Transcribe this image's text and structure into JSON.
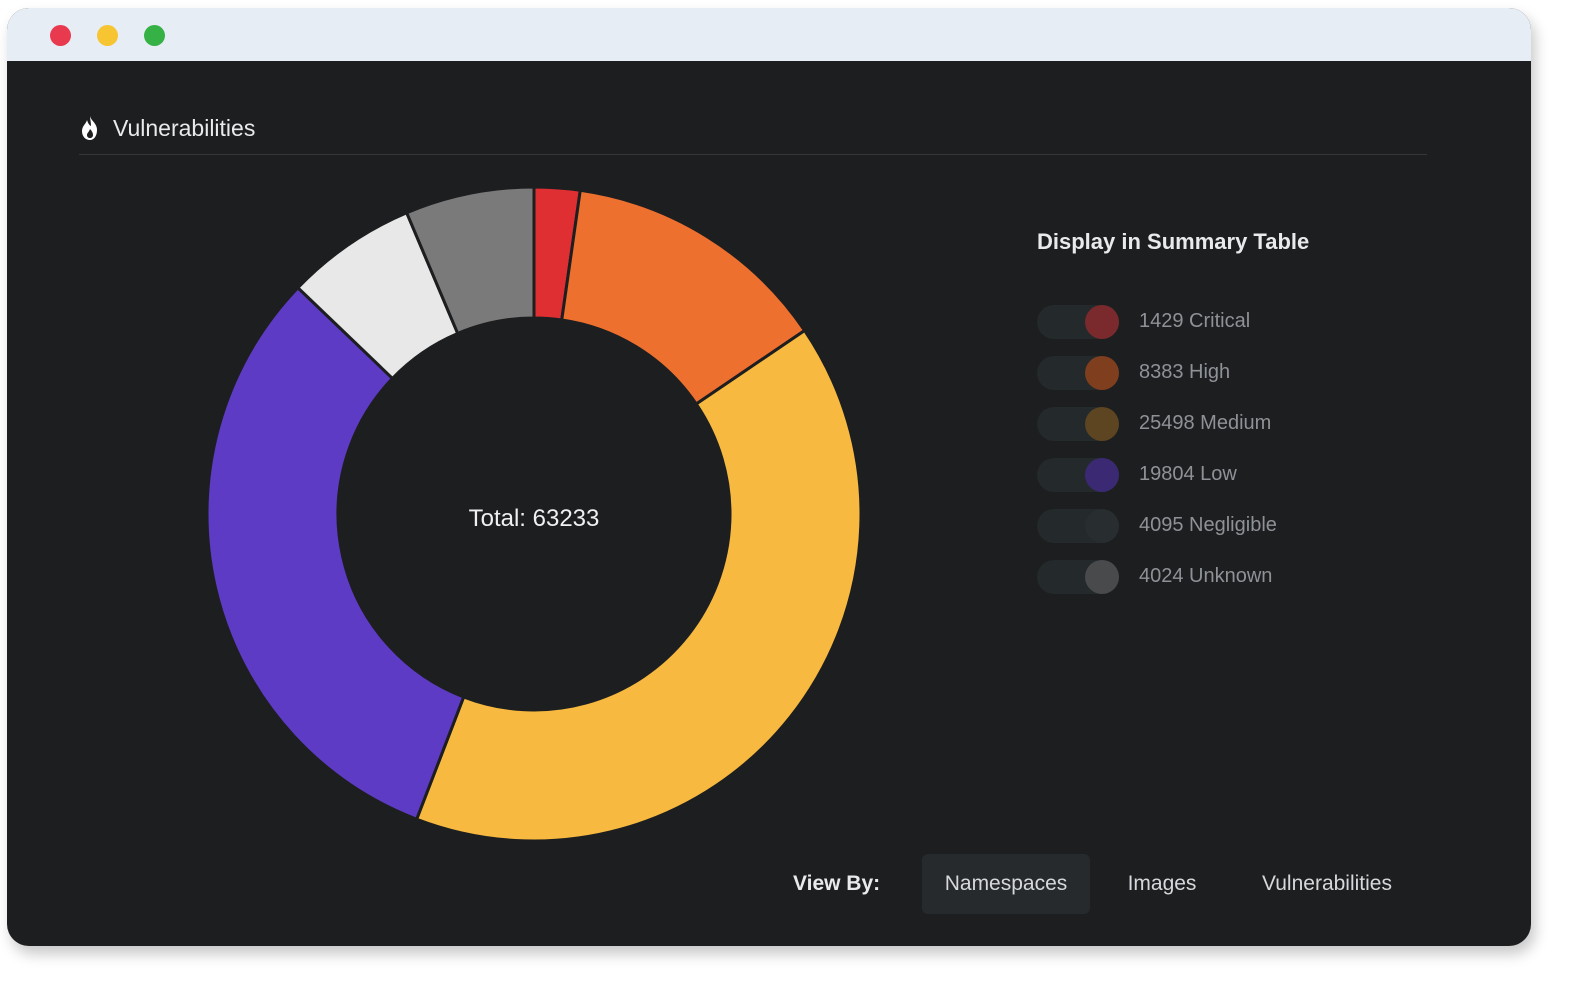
{
  "window": {
    "controls": [
      "close",
      "minimize",
      "maximize"
    ],
    "colors": {
      "close": "#e8394f",
      "minimize": "#f6c531",
      "maximize": "#36b145"
    }
  },
  "panel": {
    "title": "Vulnerabilities",
    "icon": "flame-icon"
  },
  "chart_data": {
    "type": "pie",
    "variant": "donut",
    "center_label": "Total: 63233",
    "total": 63233,
    "slices": [
      {
        "label": "Critical",
        "value": 1429,
        "color": "#df2f32"
      },
      {
        "label": "High",
        "value": 8383,
        "color": "#ee702f"
      },
      {
        "label": "Medium",
        "value": 25498,
        "color": "#f7b93f"
      },
      {
        "label": "Low",
        "value": 19804,
        "color": "#5e3bc4"
      },
      {
        "label": "Negligible",
        "value": 4095,
        "color": "#e8e8e8"
      },
      {
        "label": "Unknown",
        "value": 4024,
        "color": "#7a7a7a"
      }
    ]
  },
  "legend": {
    "title": "Display in Summary Table",
    "items": [
      {
        "label": "1429 Critical",
        "knob_color": "#7a2a2c"
      },
      {
        "label": "8383 High",
        "knob_color": "#7f3e1e"
      },
      {
        "label": "25498 Medium",
        "knob_color": "#5c4520"
      },
      {
        "label": "19804 Low",
        "knob_color": "#3b2a73"
      },
      {
        "label": "4095 Negligible",
        "knob_color": "#282d2f"
      },
      {
        "label": "4024 Unknown",
        "knob_color": "#484a4c"
      }
    ]
  },
  "view_by": {
    "label": "View By:",
    "options": [
      {
        "label": "Namespaces",
        "active": true
      },
      {
        "label": "Images",
        "active": false
      },
      {
        "label": "Vulnerabilities",
        "active": false
      }
    ]
  }
}
